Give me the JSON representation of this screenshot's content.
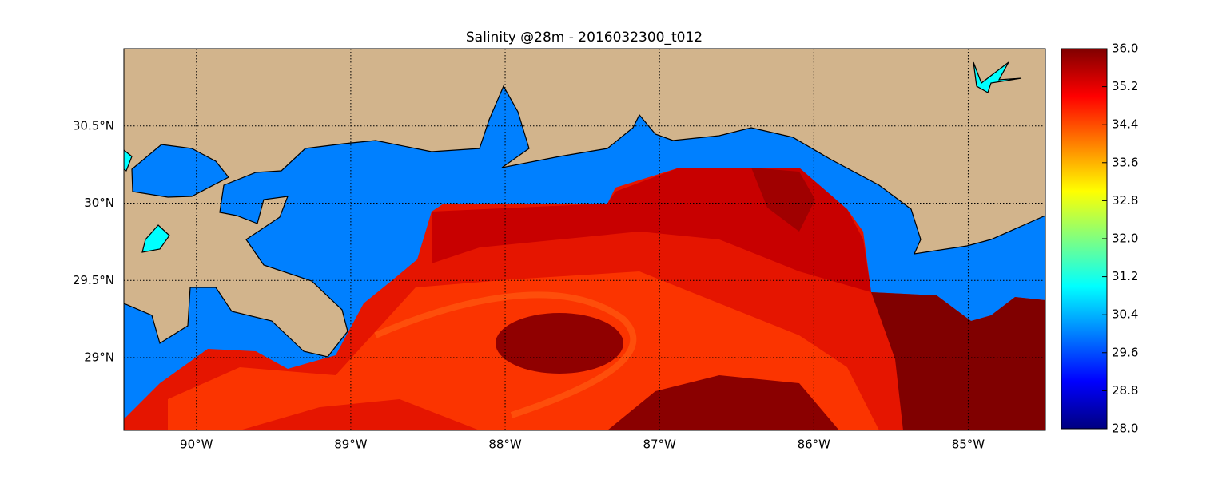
{
  "chart_data": {
    "type": "map",
    "title": "Salinity @28m - 2016032300_t012",
    "xlim": [
      -90.47,
      -84.5
    ],
    "ylim": [
      28.53,
      31.0
    ],
    "xticks": [
      {
        "value": -90,
        "label": "90°W"
      },
      {
        "value": -89,
        "label": "89°W"
      },
      {
        "value": -88,
        "label": "88°W"
      },
      {
        "value": -87,
        "label": "87°W"
      },
      {
        "value": -86,
        "label": "86°W"
      },
      {
        "value": -85,
        "label": "85°W"
      }
    ],
    "yticks": [
      {
        "value": 29,
        "label": "29°N"
      },
      {
        "value": 29.5,
        "label": "29.5°N"
      },
      {
        "value": 30,
        "label": "30°N"
      },
      {
        "value": 30.5,
        "label": "30.5°N"
      }
    ],
    "grid": true,
    "colorbar": {
      "colormap": "jet",
      "lim": [
        28,
        36
      ],
      "ticks": [
        {
          "value": 28,
          "label": "28.0"
        },
        {
          "value": 28.8,
          "label": "28.8"
        },
        {
          "value": 29.6,
          "label": "29.6"
        },
        {
          "value": 30.4,
          "label": "30.4"
        },
        {
          "value": 31.2,
          "label": "31.2"
        },
        {
          "value": 32,
          "label": "32.0"
        },
        {
          "value": 32.8,
          "label": "32.8"
        },
        {
          "value": 33.6,
          "label": "33.6"
        },
        {
          "value": 34.4,
          "label": "34.4"
        },
        {
          "value": 35.2,
          "label": "35.2"
        },
        {
          "value": 36,
          "label": "36.0"
        }
      ]
    }
  }
}
